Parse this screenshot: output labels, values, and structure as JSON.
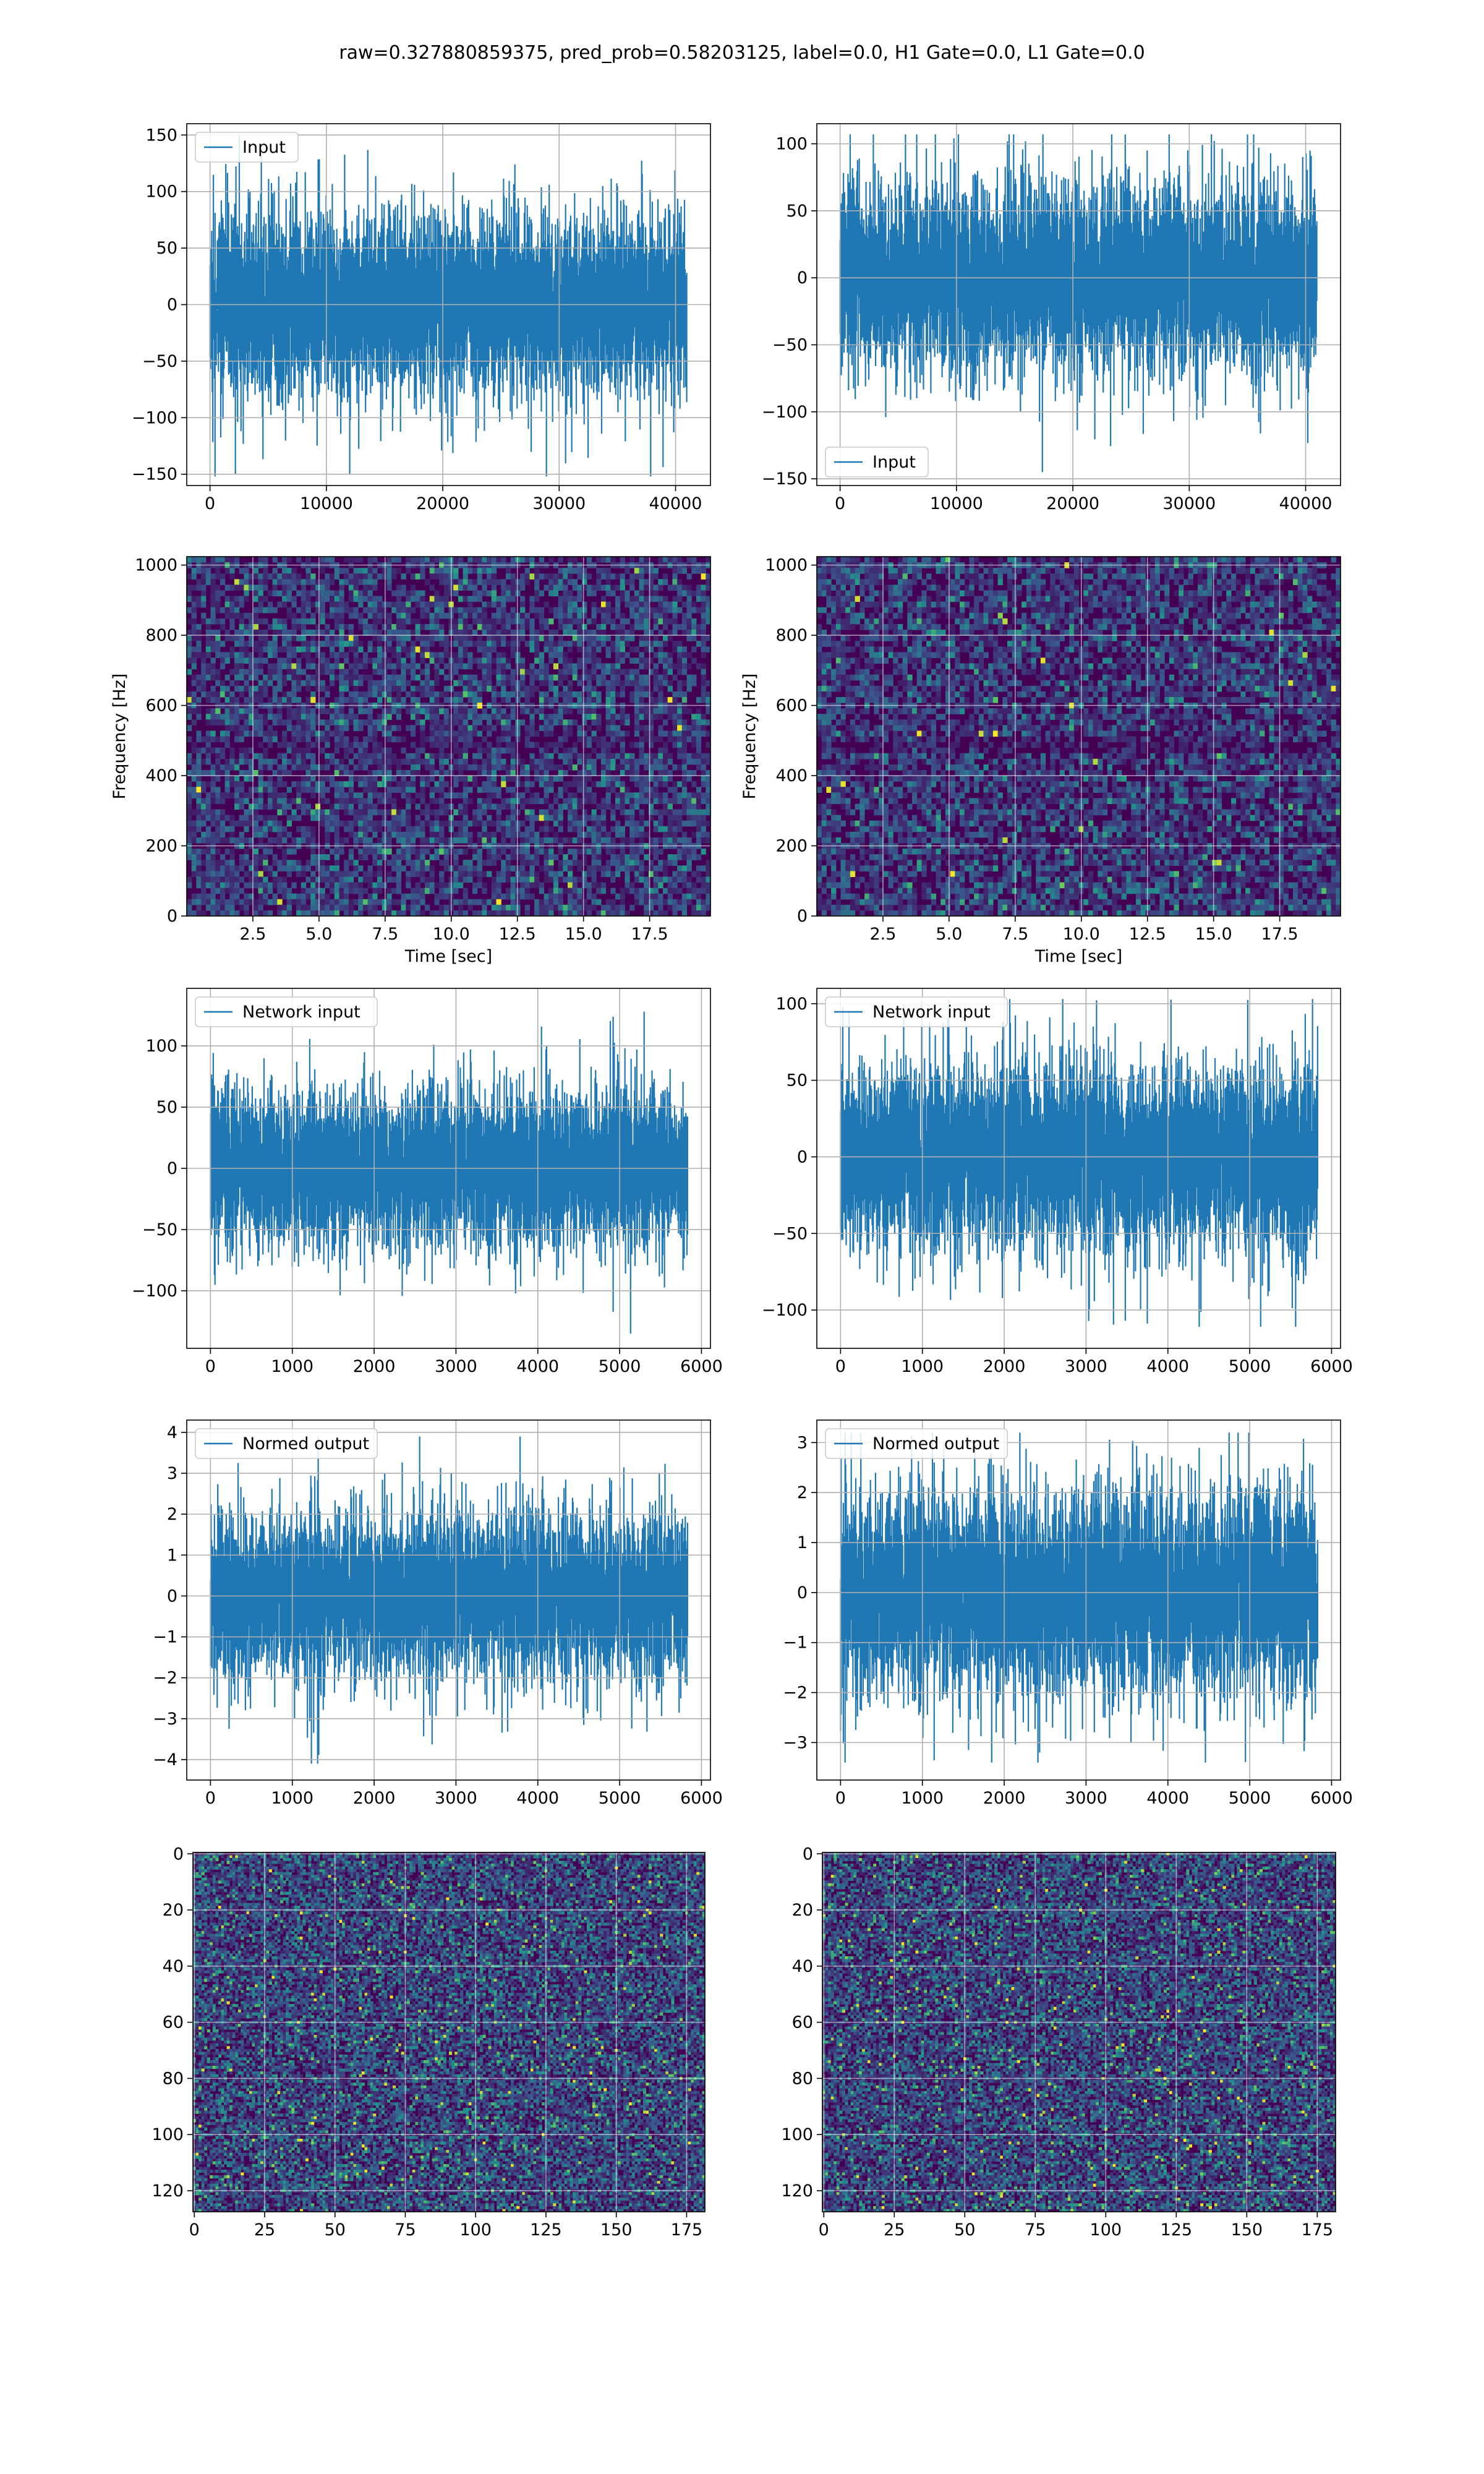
{
  "title": "raw=0.327880859375, pred_prob=0.58203125, label=0.0, H1 Gate=0.0, L1 Gate=0.0",
  "colors": {
    "line": "#1f77b4",
    "grid": "#b0b0b0",
    "viridis_low": "#440154",
    "viridis_mid": "#21918c",
    "viridis_high": "#fde725"
  },
  "chart_data": [
    {
      "id": "input-h1",
      "type": "line",
      "xlim": [
        -2000,
        43000
      ],
      "ylim": [
        -160,
        160
      ],
      "xticks": [
        0,
        10000,
        20000,
        30000,
        40000
      ],
      "yticks": [
        -150,
        -100,
        -50,
        0,
        50,
        100,
        150
      ],
      "series": [
        {
          "name": "Input",
          "n": 40960,
          "std": 38,
          "min": -152,
          "max": 150
        }
      ],
      "legend": "upper left",
      "grid": true
    },
    {
      "id": "input-l1",
      "type": "line",
      "xlim": [
        -2000,
        43000
      ],
      "ylim": [
        -155,
        115
      ],
      "xticks": [
        0,
        10000,
        20000,
        30000,
        40000
      ],
      "yticks": [
        -150,
        -100,
        -50,
        0,
        50,
        100
      ],
      "series": [
        {
          "name": "Input",
          "n": 40960,
          "std": 34,
          "min": -145,
          "max": 107
        }
      ],
      "legend": "lower left",
      "grid": true
    },
    {
      "id": "spec-h1",
      "type": "heatmap",
      "xlim": [
        0,
        19.8
      ],
      "ylim": [
        0,
        1024
      ],
      "xticks": [
        2.5,
        5.0,
        7.5,
        10.0,
        12.5,
        15.0,
        17.5
      ],
      "yticks": [
        0,
        200,
        400,
        600,
        800,
        1000
      ],
      "xlabel": "Time [sec]",
      "ylabel": "Frequency [Hz]",
      "colormap": "viridis",
      "grid": true
    },
    {
      "id": "spec-l1",
      "type": "heatmap",
      "xlim": [
        0,
        19.8
      ],
      "ylim": [
        0,
        1024
      ],
      "xticks": [
        2.5,
        5.0,
        7.5,
        10.0,
        12.5,
        15.0,
        17.5
      ],
      "yticks": [
        0,
        200,
        400,
        600,
        800,
        1000
      ],
      "xlabel": "Time [sec]",
      "ylabel": "Frequency [Hz]",
      "colormap": "viridis",
      "grid": true
    },
    {
      "id": "net-h1",
      "type": "line",
      "xlim": [
        -290,
        6110
      ],
      "ylim": [
        -147,
        147
      ],
      "xticks": [
        0,
        1000,
        2000,
        3000,
        4000,
        5000,
        6000
      ],
      "yticks": [
        -100,
        -50,
        0,
        50,
        100
      ],
      "series": [
        {
          "name": "Network input",
          "n": 5830,
          "std": 31,
          "min": -135,
          "max": 128
        }
      ],
      "legend": "upper left",
      "grid": true
    },
    {
      "id": "net-l1",
      "type": "line",
      "xlim": [
        -290,
        6110
      ],
      "ylim": [
        -125,
        110
      ],
      "xticks": [
        0,
        1000,
        2000,
        3000,
        4000,
        5000,
        6000
      ],
      "yticks": [
        -100,
        -50,
        0,
        50,
        100
      ],
      "series": [
        {
          "name": "Network input",
          "n": 5830,
          "std": 29,
          "min": -111,
          "max": 103
        }
      ],
      "legend": "upper left",
      "grid": true
    },
    {
      "id": "norm-h1",
      "type": "line",
      "xlim": [
        -290,
        6110
      ],
      "ylim": [
        -4.5,
        4.3
      ],
      "xticks": [
        0,
        1000,
        2000,
        3000,
        4000,
        5000,
        6000
      ],
      "yticks": [
        -4,
        -3,
        -2,
        -1,
        0,
        1,
        2,
        3,
        4
      ],
      "series": [
        {
          "name": "Normed output",
          "n": 5830,
          "std": 1.0,
          "min": -4.1,
          "max": 3.9
        }
      ],
      "legend": "upper left",
      "grid": true
    },
    {
      "id": "norm-l1",
      "type": "line",
      "xlim": [
        -290,
        6110
      ],
      "ylim": [
        -3.75,
        3.45
      ],
      "xticks": [
        0,
        1000,
        2000,
        3000,
        4000,
        5000,
        6000
      ],
      "yticks": [
        -3,
        -2,
        -1,
        0,
        1,
        2,
        3
      ],
      "series": [
        {
          "name": "Normed output",
          "n": 5830,
          "std": 1.0,
          "min": -3.4,
          "max": 3.2
        }
      ],
      "legend": "upper left",
      "grid": true
    },
    {
      "id": "img-h1",
      "type": "heatmap",
      "xlim": [
        -0.5,
        181.5
      ],
      "ylim": [
        127.5,
        -0.5
      ],
      "xticks": [
        0,
        25,
        50,
        75,
        100,
        125,
        150,
        175
      ],
      "yticks": [
        0,
        20,
        40,
        60,
        80,
        100,
        120
      ],
      "colormap": "viridis",
      "grid": true
    },
    {
      "id": "img-l1",
      "type": "heatmap",
      "xlim": [
        -0.5,
        181.5
      ],
      "ylim": [
        127.5,
        -0.5
      ],
      "xticks": [
        0,
        25,
        50,
        75,
        100,
        125,
        150,
        175
      ],
      "yticks": [
        0,
        20,
        40,
        60,
        80,
        100,
        120
      ],
      "colormap": "viridis",
      "grid": true
    }
  ]
}
